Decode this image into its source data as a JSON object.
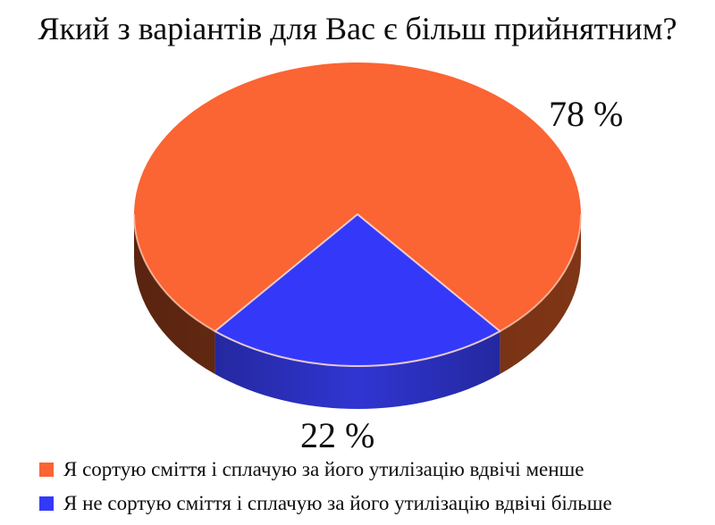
{
  "title": "Який з варіантів для Вас є більш прийнятним?",
  "chart_data": {
    "type": "pie",
    "style": "3d",
    "title": "Який з варіантів для Вас є більш прийнятним?",
    "unit": "percent",
    "total": 100,
    "legend_position": "bottom-left",
    "label_color": "#111111",
    "slices": [
      {
        "name": "Я сортую сміття і сплачую за його утилізацію вдвічі менше",
        "value": 78,
        "label": "78 %",
        "color": "#fb6433",
        "side_gradient": [
          "#5a2410",
          "#803616"
        ]
      },
      {
        "name": "Я не сортую сміття і сплачую за його утилізацію вдвічі більше",
        "value": 22,
        "label": "22 %",
        "color": "#3439f9",
        "side_gradient": [
          "#24289f",
          "#3035d2",
          "#24289f"
        ]
      }
    ]
  }
}
